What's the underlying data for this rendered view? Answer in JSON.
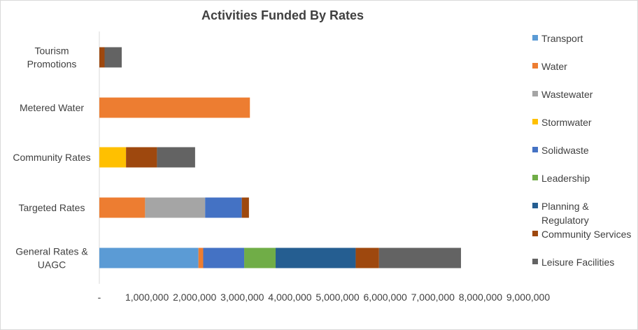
{
  "chart_data": {
    "type": "bar",
    "orientation": "horizontal",
    "stacked": true,
    "title": "Activities Funded By Rates",
    "xlabel": "",
    "ylabel": "",
    "xlim": [
      0,
      9000000
    ],
    "x_ticks": [
      "-",
      "1,000,000",
      "2,000,000",
      "3,000,000",
      "4,000,000",
      "5,000,000",
      "6,000,000",
      "7,000,000",
      "8,000,000",
      "9,000,000"
    ],
    "grid": false,
    "legend_position": "right",
    "categories": [
      [
        "Tourism",
        "Promotions"
      ],
      [
        "Metered Water"
      ],
      [
        "Community Rates"
      ],
      [
        "Targeted Rates"
      ],
      [
        "General Rates &",
        "UAGC"
      ]
    ],
    "series": [
      {
        "name": "Transport",
        "color": "#5b9bd5",
        "values": [
          0,
          0,
          0,
          0,
          2080000
        ]
      },
      {
        "name": "Water",
        "color": "#ed7d31",
        "values": [
          0,
          3160000,
          0,
          960000,
          100000
        ]
      },
      {
        "name": "Wastewater",
        "color": "#a5a5a5",
        "values": [
          0,
          0,
          0,
          1260000,
          0
        ]
      },
      {
        "name": "Stormwater",
        "color": "#ffc000",
        "values": [
          0,
          0,
          560000,
          0,
          0
        ]
      },
      {
        "name": "Solidwaste",
        "color": "#4472c4",
        "values": [
          0,
          0,
          0,
          770000,
          860000
        ]
      },
      {
        "name": "Leadership",
        "color": "#70ad47",
        "values": [
          0,
          0,
          0,
          0,
          660000
        ]
      },
      {
        "name": "Planning & Regulatory",
        "color": "#255e91",
        "values": [
          0,
          0,
          0,
          0,
          1680000
        ]
      },
      {
        "name": "Community Services",
        "color": "#9e480e",
        "values": [
          110000,
          0,
          650000,
          150000,
          490000
        ]
      },
      {
        "name": "Leisure Facilities",
        "color": "#636363",
        "values": [
          360000,
          0,
          800000,
          0,
          1720000
        ]
      }
    ]
  },
  "legend": {
    "items": [
      {
        "lines": [
          "Transport"
        ]
      },
      {
        "lines": [
          "Water"
        ]
      },
      {
        "lines": [
          "Wastewater"
        ]
      },
      {
        "lines": [
          "Stormwater"
        ]
      },
      {
        "lines": [
          "Solidwaste"
        ]
      },
      {
        "lines": [
          "Leadership"
        ]
      },
      {
        "lines": [
          "Planning &",
          "Regulatory"
        ]
      },
      {
        "lines": [
          "Community Services"
        ]
      },
      {
        "lines": [
          "Leisure Facilities"
        ]
      }
    ]
  }
}
